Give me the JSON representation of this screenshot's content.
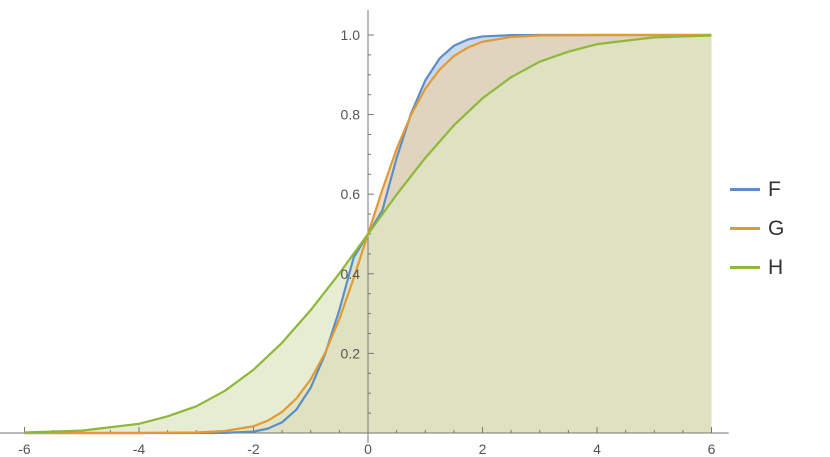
{
  "chart_data": {
    "type": "area",
    "title": "",
    "xlabel": "",
    "ylabel": "",
    "xlim": [
      -6.6,
      6.3
    ],
    "ylim": [
      0,
      1.05
    ],
    "x_ticks": [
      -6,
      -4,
      -2,
      0,
      2,
      4,
      6
    ],
    "x_tick_labels": [
      "-6",
      "-4",
      "-2",
      "0",
      "2",
      "4",
      "6"
    ],
    "y_ticks": [
      0.2,
      0.4,
      0.6,
      0.8,
      1.0
    ],
    "y_tick_labels": [
      "0.2",
      "0.4",
      "0.6",
      "0.8",
      "1.0"
    ],
    "grid": false,
    "legend_position": "right",
    "filled_to": 0,
    "series": [
      {
        "name": "F",
        "color": "#5b8ec9",
        "fill": "#b9cce4",
        "x": [
          -6,
          -5,
          -4,
          -3,
          -2.5,
          -2,
          -1.75,
          -1.5,
          -1.25,
          -1,
          -0.75,
          -0.5,
          -0.25,
          0,
          0.25,
          0.5,
          0.75,
          1,
          1.25,
          1.5,
          1.75,
          2,
          2.5,
          3,
          4,
          5,
          6
        ],
        "y": [
          0,
          0,
          0,
          0,
          0.0003,
          0.0036,
          0.011,
          0.027,
          0.059,
          0.114,
          0.198,
          0.309,
          0.441,
          0.5,
          0.559,
          0.691,
          0.802,
          0.886,
          0.941,
          0.973,
          0.989,
          0.9964,
          0.9997,
          1,
          1,
          1,
          1
        ]
      },
      {
        "name": "G",
        "color": "#e29a33",
        "fill": "#e6d2ae",
        "x": [
          -6,
          -5,
          -4,
          -3,
          -2.5,
          -2,
          -1.75,
          -1.5,
          -1.25,
          -1,
          -0.75,
          -0.5,
          -0.25,
          0,
          0.25,
          0.5,
          0.75,
          1,
          1.25,
          1.5,
          1.75,
          2,
          2.5,
          3,
          4,
          5,
          6
        ],
        "y": [
          0,
          0,
          0,
          0.0012,
          0.005,
          0.017,
          0.031,
          0.053,
          0.087,
          0.135,
          0.201,
          0.286,
          0.389,
          0.5,
          0.611,
          0.714,
          0.799,
          0.865,
          0.913,
          0.947,
          0.969,
          0.983,
          0.995,
          0.9988,
          1,
          1,
          1
        ]
      },
      {
        "name": "H",
        "color": "#8db83a",
        "fill": "#dfe7c3",
        "x": [
          -6,
          -5,
          -4,
          -3.5,
          -3,
          -2.5,
          -2,
          -1.5,
          -1,
          -0.5,
          0,
          0.5,
          1,
          1.5,
          2,
          2.5,
          3,
          3.5,
          4,
          5,
          6
        ],
        "y": [
          0.0012,
          0.006,
          0.023,
          0.042,
          0.067,
          0.106,
          0.159,
          0.227,
          0.309,
          0.401,
          0.5,
          0.599,
          0.691,
          0.773,
          0.841,
          0.894,
          0.933,
          0.958,
          0.977,
          0.994,
          0.9988
        ]
      }
    ],
    "overlap_fill": "#c6c294"
  }
}
